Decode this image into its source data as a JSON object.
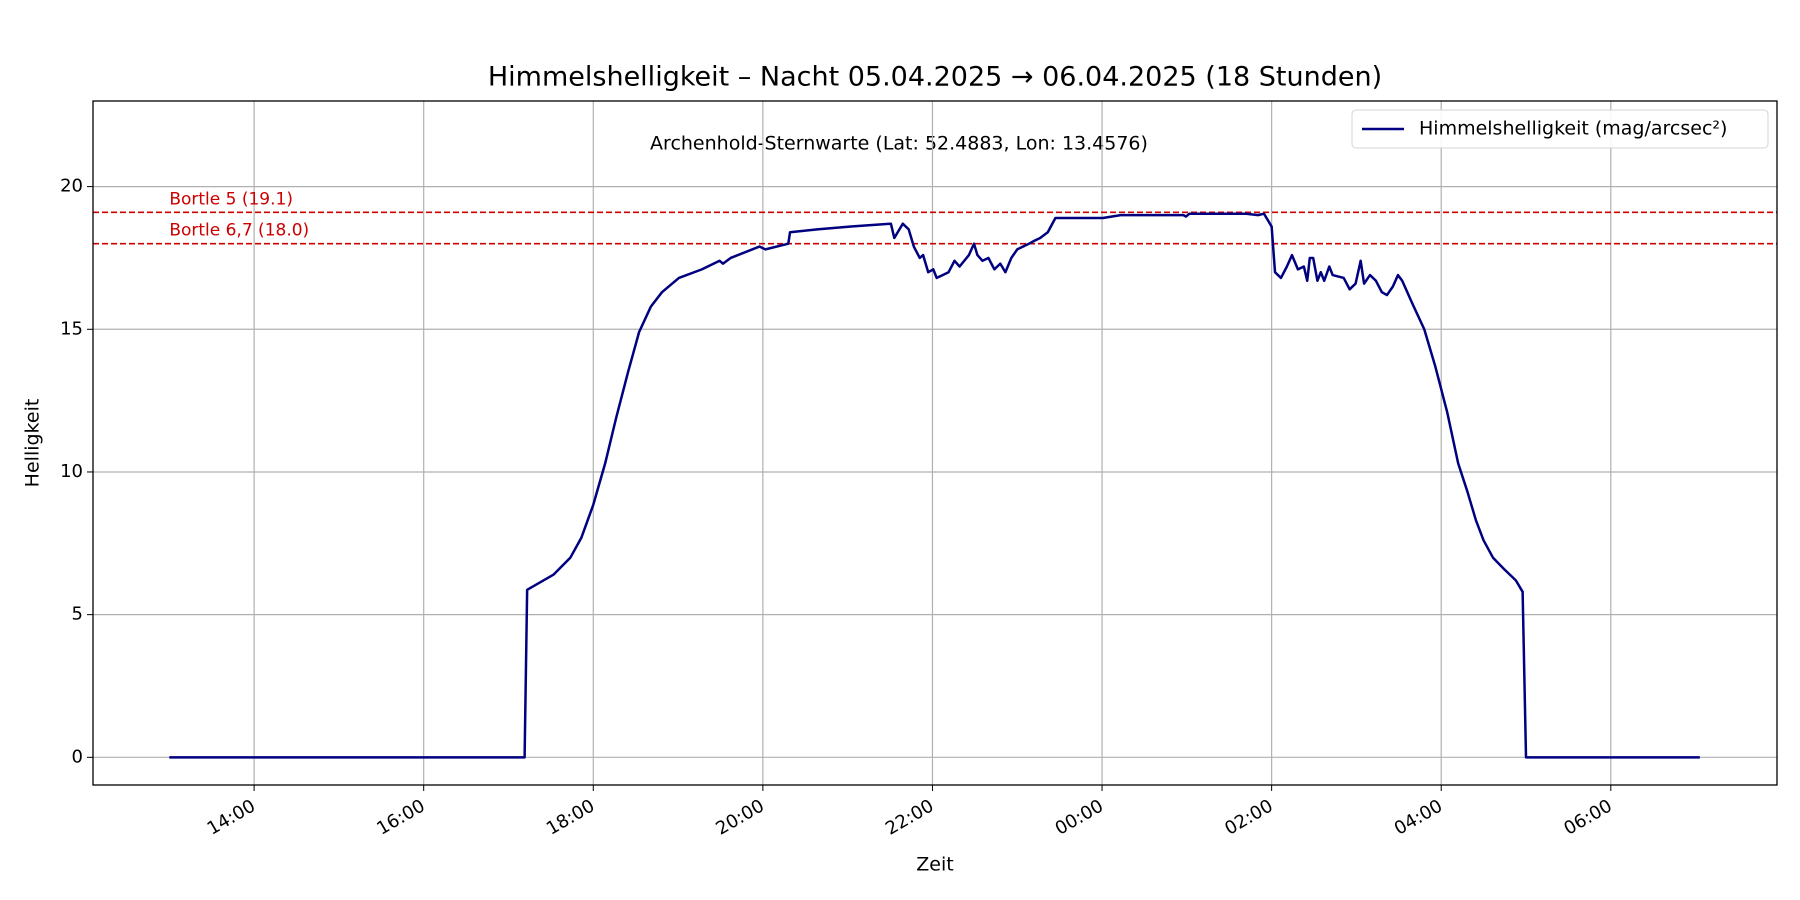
{
  "chart_data": {
    "type": "line",
    "title": "Himmelshelligkeit – Nacht 05.04.2025 → 06.04.2025 (18 Stunden)",
    "annotation": "Archenhold-Sternwarte (Lat: 52.4883, Lon: 13.4576)",
    "xlabel": "Zeit",
    "ylabel": "Helligkeit",
    "x": [
      13.0,
      17.19,
      17.22,
      17.53,
      17.73,
      17.86,
      18.0,
      18.14,
      18.27,
      18.41,
      18.54,
      18.68,
      18.81,
      19.01,
      19.28,
      19.49,
      19.53,
      19.62,
      19.96,
      20.03,
      20.3,
      20.32,
      20.64,
      21.04,
      21.51,
      21.55,
      21.65,
      21.72,
      21.78,
      21.85,
      21.89,
      21.95,
      22.01,
      22.05,
      22.12,
      22.19,
      22.26,
      22.32,
      22.43,
      22.49,
      22.53,
      22.59,
      22.66,
      22.73,
      22.8,
      22.86,
      22.93,
      23.0,
      23.07,
      23.14,
      23.2,
      23.27,
      23.36,
      23.45,
      23.54,
      24.01,
      24.22,
      24.96,
      24.99,
      25.03,
      25.7,
      25.84,
      25.91,
      26.0,
      26.04,
      26.11,
      26.18,
      26.24,
      26.31,
      26.38,
      26.42,
      26.45,
      26.49,
      26.54,
      26.58,
      26.62,
      26.68,
      26.72,
      26.85,
      26.92,
      26.99,
      27.05,
      27.09,
      27.16,
      27.23,
      27.3,
      27.36,
      27.43,
      27.49,
      27.54,
      27.66,
      27.8,
      27.93,
      28.07,
      28.2,
      28.31,
      28.41,
      28.5,
      28.61,
      28.74,
      28.88,
      28.96,
      29.0,
      31.05
    ],
    "series": [
      {
        "name": "Himmelshelligkeit (mag/arcsec²)",
        "color": "#000080",
        "values": [
          0,
          0,
          5.87,
          6.4,
          7.0,
          7.7,
          8.85,
          10.3,
          11.9,
          13.5,
          14.9,
          15.8,
          16.3,
          16.8,
          17.1,
          17.4,
          17.3,
          17.5,
          17.9,
          17.8,
          18.0,
          18.4,
          18.5,
          18.6,
          18.7,
          18.2,
          18.7,
          18.5,
          17.9,
          17.5,
          17.6,
          17.0,
          17.1,
          16.8,
          16.9,
          17.0,
          17.4,
          17.2,
          17.6,
          18.0,
          17.6,
          17.4,
          17.5,
          17.1,
          17.3,
          17.0,
          17.5,
          17.8,
          17.9,
          18.0,
          18.1,
          18.2,
          18.4,
          18.9,
          18.9,
          18.9,
          19.0,
          19.0,
          18.95,
          19.05,
          19.05,
          19.0,
          19.05,
          18.6,
          17.0,
          16.8,
          17.2,
          17.6,
          17.1,
          17.2,
          16.7,
          17.5,
          17.5,
          16.7,
          17.0,
          16.7,
          17.2,
          16.9,
          16.8,
          16.4,
          16.6,
          17.4,
          16.6,
          16.9,
          16.7,
          16.3,
          16.2,
          16.5,
          16.9,
          16.7,
          15.9,
          15.0,
          13.7,
          12.1,
          10.3,
          9.3,
          8.3,
          7.6,
          7.0,
          6.6,
          6.2,
          5.8,
          0,
          0
        ]
      }
    ],
    "reference_lines": [
      {
        "label": "Bortle 5 (19.1)",
        "value": 19.1,
        "color": "#cc0000"
      },
      {
        "label": "Bortle 6,7 (18.0)",
        "value": 18.0,
        "color": "#cc0000"
      }
    ],
    "xlim": [
      12.1,
      31.96
    ],
    "ylim": [
      -0.97,
      23.0
    ],
    "xticks": [
      {
        "value": 14,
        "label": "14:00"
      },
      {
        "value": 16,
        "label": "16:00"
      },
      {
        "value": 18,
        "label": "18:00"
      },
      {
        "value": 20,
        "label": "20:00"
      },
      {
        "value": 22,
        "label": "22:00"
      },
      {
        "value": 24,
        "label": "00:00"
      },
      {
        "value": 26,
        "label": "02:00"
      },
      {
        "value": 28,
        "label": "04:00"
      },
      {
        "value": 30,
        "label": "06:00"
      }
    ],
    "yticks": [
      0,
      5,
      10,
      15,
      20
    ],
    "grid": true,
    "legend": "upper right"
  }
}
